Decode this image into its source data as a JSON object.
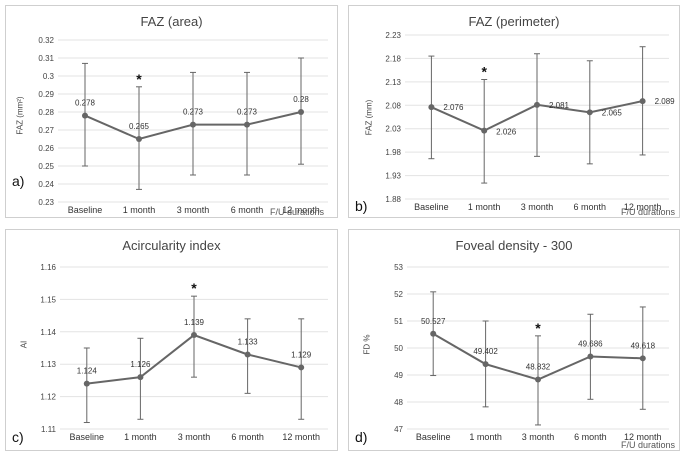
{
  "charts": [
    {
      "type": "line",
      "panel_label": "a)",
      "title": "FAZ (area)",
      "ylabel": "FAZ (mm²)",
      "x_footer": "F/U durations",
      "categories": [
        "Baseline",
        "1 month",
        "3 month",
        "6 month",
        "12 month"
      ],
      "values": [
        0.278,
        0.265,
        0.273,
        0.273,
        0.28
      ],
      "value_labels": [
        "0.278",
        "0.265",
        "0.273",
        "0.273",
        "0.28"
      ],
      "error_upper": [
        0.307,
        0.294,
        0.302,
        0.302,
        0.31
      ],
      "error_lower": [
        0.25,
        0.237,
        0.245,
        0.245,
        0.251
      ],
      "ylim": [
        0.23,
        0.32
      ],
      "yticks": [
        "0.23",
        "0.24",
        "0.25",
        "0.26",
        "0.27",
        "0.28",
        "0.29",
        "0.3",
        "0.31",
        "0.32"
      ],
      "significance_index": 1,
      "significance_mark": "*"
    },
    {
      "type": "line",
      "panel_label": "b)",
      "title": "FAZ (perimeter)",
      "ylabel": "FAZ (mm)",
      "x_footer": "F/U durations",
      "categories": [
        "Baseline",
        "1 month",
        "3 month",
        "6 month",
        "12 month"
      ],
      "values": [
        2.076,
        2.026,
        2.081,
        2.065,
        2.089
      ],
      "value_labels": [
        "2.076",
        "2.026",
        "2.081",
        "2.065",
        "2.089"
      ],
      "error_upper": [
        2.185,
        2.135,
        2.19,
        2.175,
        2.205
      ],
      "error_lower": [
        1.966,
        1.914,
        1.971,
        1.955,
        1.974
      ],
      "ylim": [
        1.88,
        2.23
      ],
      "yticks": [
        "1.88",
        "1.93",
        "1.98",
        "2.03",
        "2.08",
        "2.13",
        "2.18",
        "2.23"
      ],
      "significance_index": 1,
      "significance_mark": "*"
    },
    {
      "type": "line",
      "panel_label": "c)",
      "title": "Acircularity index",
      "ylabel": "AI",
      "x_footer": "",
      "categories": [
        "Baseline",
        "1 month",
        "3 month",
        "6 month",
        "12 month"
      ],
      "values": [
        1.124,
        1.126,
        1.139,
        1.133,
        1.129
      ],
      "value_labels": [
        "1.124",
        "1.126",
        "1.139",
        "1.133",
        "1.129"
      ],
      "error_upper": [
        1.135,
        1.138,
        1.151,
        1.144,
        1.144
      ],
      "error_lower": [
        1.112,
        1.113,
        1.126,
        1.121,
        1.113
      ],
      "ylim": [
        1.11,
        1.16
      ],
      "yticks": [
        "1.11",
        "1.12",
        "1.13",
        "1.14",
        "1.15",
        "1.16"
      ],
      "significance_index": 2,
      "significance_mark": "*"
    },
    {
      "type": "line",
      "panel_label": "d)",
      "title": "Foveal density - 300",
      "ylabel": "FD %",
      "x_footer": "F/U durations",
      "categories": [
        "Baseline",
        "1 month",
        "3 month",
        "6 month",
        "12 month"
      ],
      "values": [
        50.527,
        49.402,
        48.832,
        49.686,
        49.618
      ],
      "value_labels": [
        "50.527",
        "49.402",
        "48.832",
        "49.686",
        "49.618"
      ],
      "error_upper": [
        52.08,
        51.0,
        50.45,
        51.25,
        51.52
      ],
      "error_lower": [
        48.98,
        47.82,
        47.15,
        48.1,
        47.73
      ],
      "ylim": [
        47,
        53
      ],
      "yticks": [
        "47",
        "48",
        "49",
        "50",
        "51",
        "52",
        "53"
      ],
      "significance_index": 2,
      "significance_mark": "*"
    }
  ],
  "chart_data": [
    {
      "type": "line",
      "title": "FAZ (area)",
      "ylabel": "FAZ (mm²)",
      "xlabel": "F/U durations",
      "categories": [
        "Baseline",
        "1 month",
        "3 month",
        "6 month",
        "12 month"
      ],
      "values": [
        0.278,
        0.265,
        0.273,
        0.273,
        0.28
      ],
      "ylim": [
        0.23,
        0.32
      ]
    },
    {
      "type": "line",
      "title": "FAZ (perimeter)",
      "ylabel": "FAZ (mm)",
      "xlabel": "F/U durations",
      "categories": [
        "Baseline",
        "1 month",
        "3 month",
        "6 month",
        "12 month"
      ],
      "values": [
        2.076,
        2.026,
        2.081,
        2.065,
        2.089
      ],
      "ylim": [
        1.88,
        2.23
      ]
    },
    {
      "type": "line",
      "title": "Acircularity index",
      "ylabel": "AI",
      "xlabel": "",
      "categories": [
        "Baseline",
        "1 month",
        "3 month",
        "6 month",
        "12 month"
      ],
      "values": [
        1.124,
        1.126,
        1.139,
        1.133,
        1.129
      ],
      "ylim": [
        1.11,
        1.16
      ]
    },
    {
      "type": "line",
      "title": "Foveal density - 300",
      "ylabel": "FD %",
      "xlabel": "F/U durations",
      "categories": [
        "Baseline",
        "1 month",
        "3 month",
        "6 month",
        "12 month"
      ],
      "values": [
        50.527,
        49.402,
        48.832,
        49.686,
        49.618
      ],
      "ylim": [
        47,
        53
      ]
    }
  ],
  "colors": {
    "line": "#666666",
    "marker": "#666666",
    "grid": "#e3e3e3",
    "text": "#444444"
  }
}
